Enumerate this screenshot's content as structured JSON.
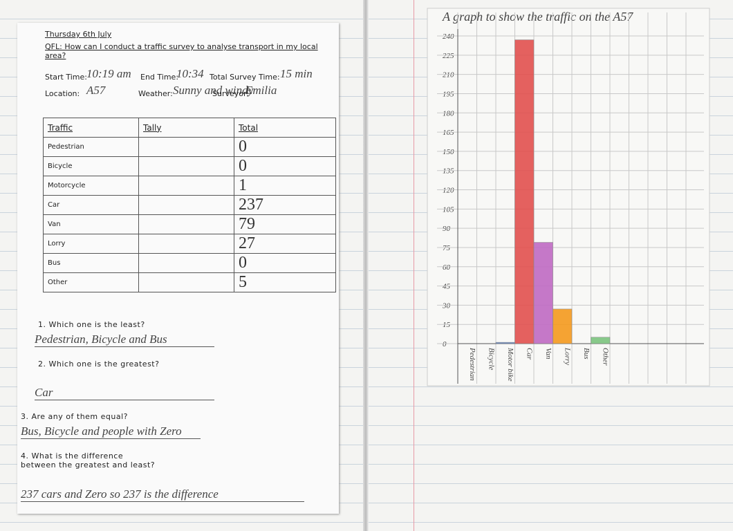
{
  "worksheet": {
    "date": "Thursday 6th July",
    "qfl": "QFL: How can I conduct a traffic survey to analyse transport in my local area?",
    "fields": [
      {
        "label": "Start Time:",
        "value": "10:19 am"
      },
      {
        "label": "End Time:",
        "value": "10:34"
      },
      {
        "label": "Total Survey Time:",
        "value": "15 min"
      },
      {
        "label": "Location:",
        "value": "A57"
      },
      {
        "label": "Weather:",
        "value": "Sunny and windy"
      },
      {
        "label": "Surveyor:",
        "value": "Emilia"
      }
    ],
    "table": {
      "header": [
        "Traffic",
        "Tally",
        "Total"
      ],
      "rows": [
        [
          "Pedestrian",
          "0"
        ],
        [
          "Bicycle",
          "0"
        ],
        [
          "Motorcycle",
          "1"
        ],
        [
          "Car",
          "237"
        ],
        [
          "Van",
          "79"
        ],
        [
          "Lorry",
          "27"
        ],
        [
          "Bus",
          "0"
        ],
        [
          "Other",
          "5"
        ]
      ]
    },
    "questions": [
      {
        "q": "1. Which one is the least?",
        "a": "Pedestrian, Bicycle and Bus"
      },
      {
        "q": "2. Which one is the greatest?",
        "a": "Car"
      },
      {
        "q": "3. Are any of them equal?",
        "a": "Bus, Bicycle and people with Zero"
      },
      {
        "q": "4. What is the difference between the greatest and least?",
        "a": "237 cars and Zero so 237 is the difference"
      }
    ]
  },
  "chart_data": {
    "type": "bar",
    "title": "A graph to show the traffic on the A57",
    "categories": [
      "Pedestrian",
      "Bicycle",
      "Motor bike",
      "Car",
      "Van",
      "Lorry",
      "Bus",
      "Other"
    ],
    "values": [
      0,
      0,
      1,
      237,
      79,
      27,
      0,
      5
    ],
    "colors": [
      "#d9d9d9",
      "#d9d9d9",
      "#5a7fc0",
      "#e2514f",
      "#c06bc4",
      "#f59a1e",
      "#d9d9d9",
      "#7cc47f"
    ],
    "ylim": [
      0,
      240
    ],
    "yticks": [
      0,
      15,
      30,
      45,
      60,
      75,
      90,
      105,
      120,
      135,
      150,
      165,
      180,
      195,
      210,
      225,
      240
    ],
    "grid": true
  }
}
